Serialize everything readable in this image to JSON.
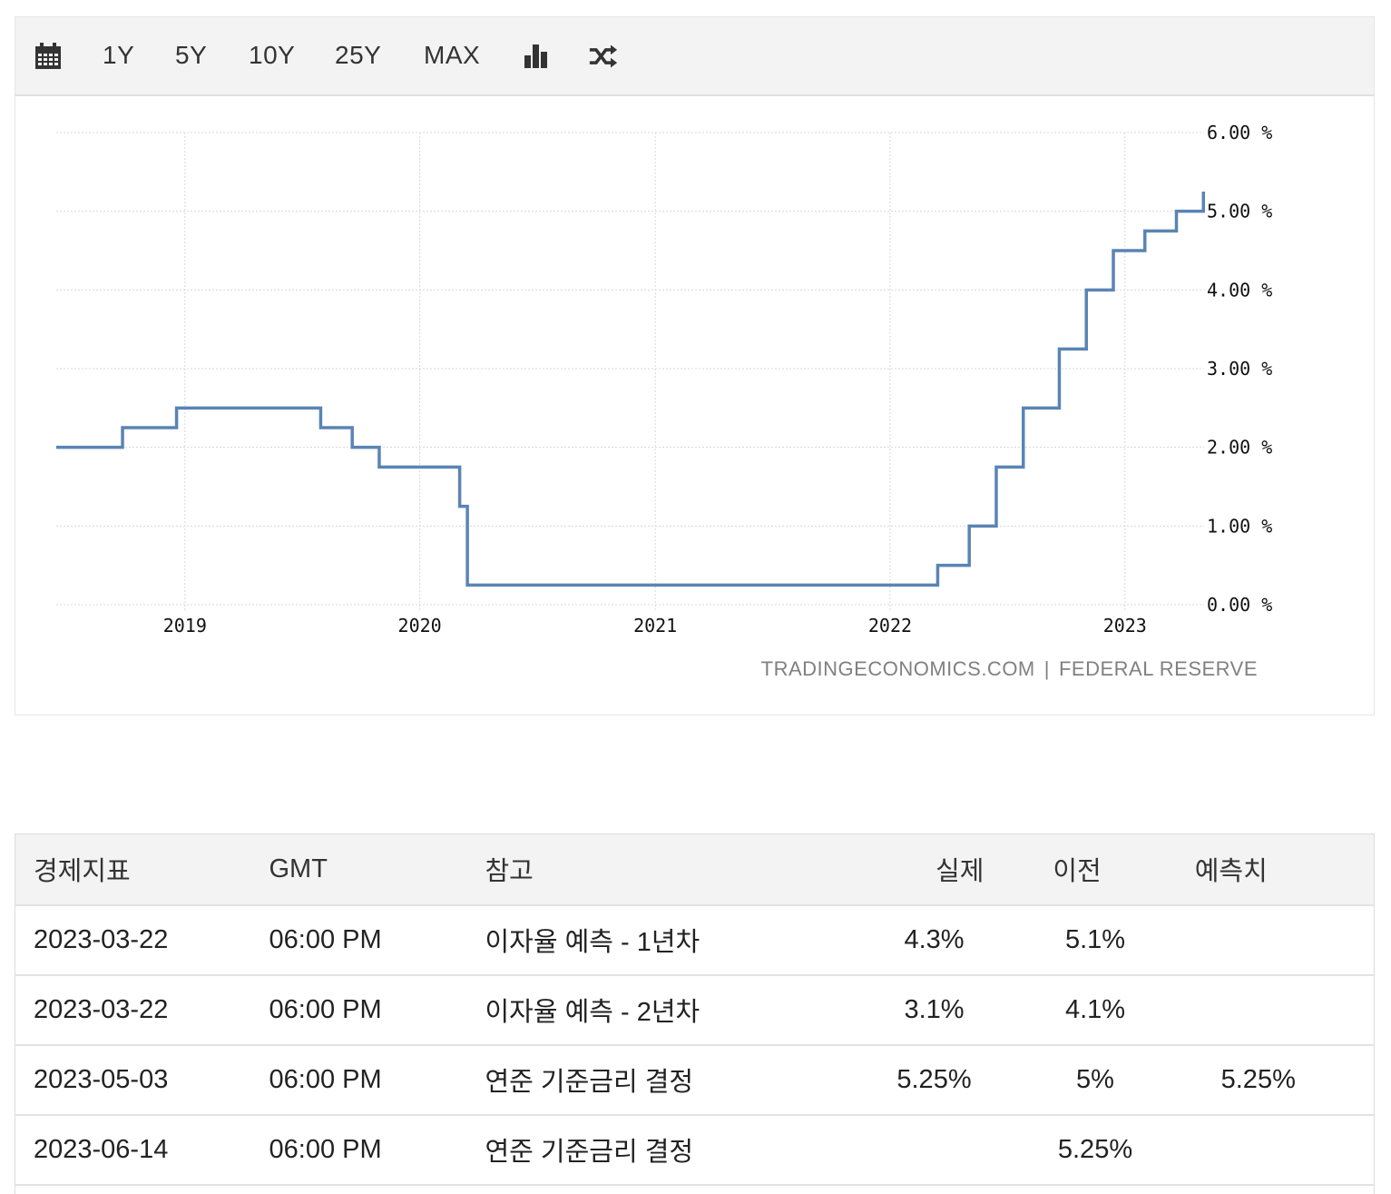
{
  "toolbar": {
    "calendar_icon": "calendar-icon",
    "ranges": [
      "1Y",
      "5Y",
      "10Y",
      "25Y",
      "MAX"
    ],
    "bar_chart_icon": "bar-chart-icon",
    "shuffle_icon": "shuffle-icon"
  },
  "source": {
    "site": "TRADINGECONOMICS.COM",
    "separator": "|",
    "provider": "FEDERAL RESERVE"
  },
  "chart_data": {
    "type": "line",
    "title": "",
    "xlabel": "",
    "ylabel": "",
    "line_color": "#5a84b4",
    "grid": true,
    "xlim": [
      "2018-06-15",
      "2023-05-04"
    ],
    "ylim": [
      0,
      6
    ],
    "y_ticks": [
      "0.00 %",
      "1.00 %",
      "2.00 %",
      "3.00 %",
      "4.00 %",
      "5.00 %",
      "6.00 %"
    ],
    "x_ticks": [
      "2019",
      "2020",
      "2021",
      "2022",
      "2023"
    ],
    "series": [
      {
        "step": true,
        "points": [
          [
            "2018-06-15",
            2.0
          ],
          [
            "2018-09-26",
            2.25
          ],
          [
            "2018-12-19",
            2.5
          ],
          [
            "2019-07-31",
            2.25
          ],
          [
            "2019-09-18",
            2.0
          ],
          [
            "2019-10-30",
            1.75
          ],
          [
            "2020-03-03",
            1.25
          ],
          [
            "2020-03-15",
            0.25
          ],
          [
            "2022-03-16",
            0.5
          ],
          [
            "2022-05-04",
            1.0
          ],
          [
            "2022-06-15",
            1.75
          ],
          [
            "2022-07-27",
            2.5
          ],
          [
            "2022-09-21",
            3.25
          ],
          [
            "2022-11-02",
            4.0
          ],
          [
            "2022-12-14",
            4.5
          ],
          [
            "2023-02-01",
            4.75
          ],
          [
            "2023-03-22",
            5.0
          ],
          [
            "2023-05-03",
            5.25
          ]
        ]
      }
    ]
  },
  "table": {
    "headers": [
      "경제지표",
      "GMT",
      "참고",
      "실제",
      "이전",
      "예측치"
    ],
    "rows": [
      {
        "date": "2023-03-22",
        "time": "06:00 PM",
        "ref": "이자율 예측 - 1년차",
        "actual": "4.3%",
        "previous": "5.1%",
        "forecast": ""
      },
      {
        "date": "2023-03-22",
        "time": "06:00 PM",
        "ref": "이자율 예측 - 2년차",
        "actual": "3.1%",
        "previous": "4.1%",
        "forecast": ""
      },
      {
        "date": "2023-05-03",
        "time": "06:00 PM",
        "ref": "연준 기준금리 결정",
        "actual": "5.25%",
        "previous": "5%",
        "forecast": "5.25%"
      },
      {
        "date": "2023-06-14",
        "time": "06:00 PM",
        "ref": "연준 기준금리 결정",
        "actual": "",
        "previous": "5.25%",
        "forecast": ""
      }
    ]
  }
}
